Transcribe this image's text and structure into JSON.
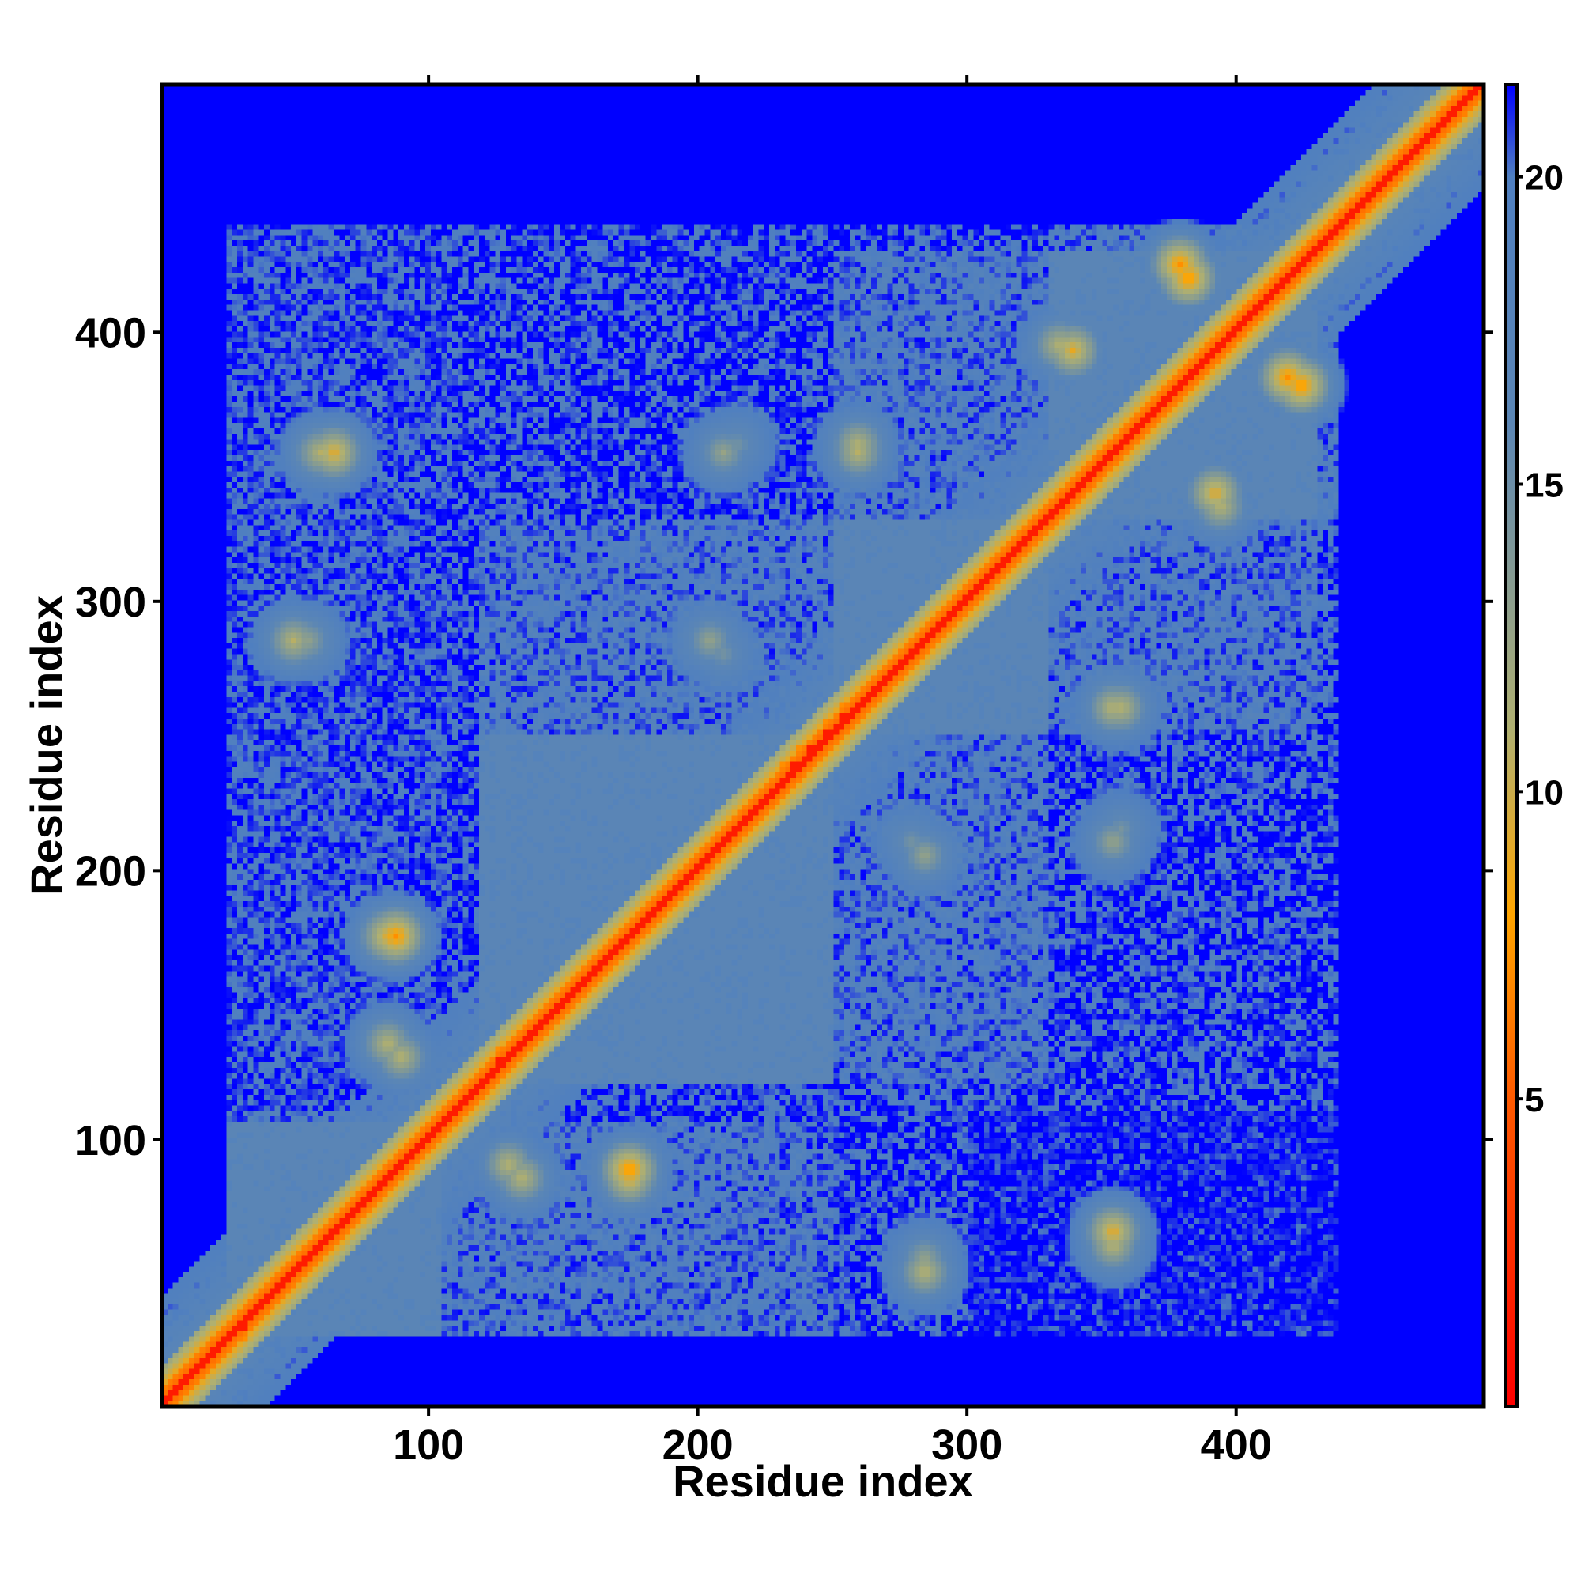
{
  "chart_data": {
    "type": "heatmap",
    "title": "",
    "xlabel": "Residue index",
    "ylabel": "Residue index",
    "xlim": [
      1,
      492
    ],
    "ylim": [
      1,
      492
    ],
    "x_ticks": [
      100,
      200,
      300,
      400
    ],
    "y_ticks": [
      100,
      200,
      300,
      400
    ],
    "x_tick_labels": [
      "100",
      "200",
      "300",
      "400"
    ],
    "y_tick_labels": [
      "100",
      "200",
      "300",
      "400"
    ],
    "colorbar": {
      "range": [
        0,
        21.5
      ],
      "ticks": [
        5,
        10,
        15,
        20
      ],
      "tick_labels": [
        "5",
        "10",
        "15",
        "20"
      ],
      "stops": [
        {
          "value": 0,
          "color": "#ff0000"
        },
        {
          "value": 5,
          "color": "#ff5a00"
        },
        {
          "value": 8,
          "color": "#ffa500"
        },
        {
          "value": 11,
          "color": "#b0b070"
        },
        {
          "value": 16,
          "color": "#5b86b5"
        },
        {
          "value": 20,
          "color": "#4f7fc0"
        },
        {
          "value": 21.5,
          "color": "#0000ff"
        }
      ]
    },
    "description_colors": {
      "background_far": "#0000ff",
      "medium": "#5b86b5",
      "near": "#ffa500",
      "contact": "#ff0000"
    },
    "domains": [
      {
        "start": 25,
        "end": 105
      },
      {
        "start": 120,
        "end": 250
      },
      {
        "start": 250,
        "end": 330
      },
      {
        "start": 330,
        "end": 430
      },
      {
        "start": 430,
        "end": 492
      }
    ],
    "contact_hotspots": [
      {
        "x": 60,
        "y": 355,
        "strength": 0.6
      },
      {
        "x": 55,
        "y": 285,
        "strength": 0.5
      },
      {
        "x": 85,
        "y": 175,
        "strength": 0.7
      },
      {
        "x": 90,
        "y": 130,
        "strength": 0.6
      },
      {
        "x": 135,
        "y": 85,
        "strength": 0.6
      },
      {
        "x": 175,
        "y": 88,
        "strength": 0.8
      },
      {
        "x": 210,
        "y": 280,
        "strength": 0.4
      },
      {
        "x": 215,
        "y": 358,
        "strength": 0.4
      },
      {
        "x": 260,
        "y": 358,
        "strength": 0.6
      },
      {
        "x": 285,
        "y": 205,
        "strength": 0.5
      },
      {
        "x": 285,
        "y": 50,
        "strength": 0.6
      },
      {
        "x": 355,
        "y": 65,
        "strength": 0.7
      },
      {
        "x": 355,
        "y": 260,
        "strength": 0.6
      },
      {
        "x": 355,
        "y": 210,
        "strength": 0.5
      },
      {
        "x": 335,
        "y": 395,
        "strength": 0.6
      },
      {
        "x": 393,
        "y": 340,
        "strength": 0.7
      },
      {
        "x": 380,
        "y": 425,
        "strength": 0.8
      },
      {
        "x": 420,
        "y": 383,
        "strength": 0.8
      }
    ]
  }
}
